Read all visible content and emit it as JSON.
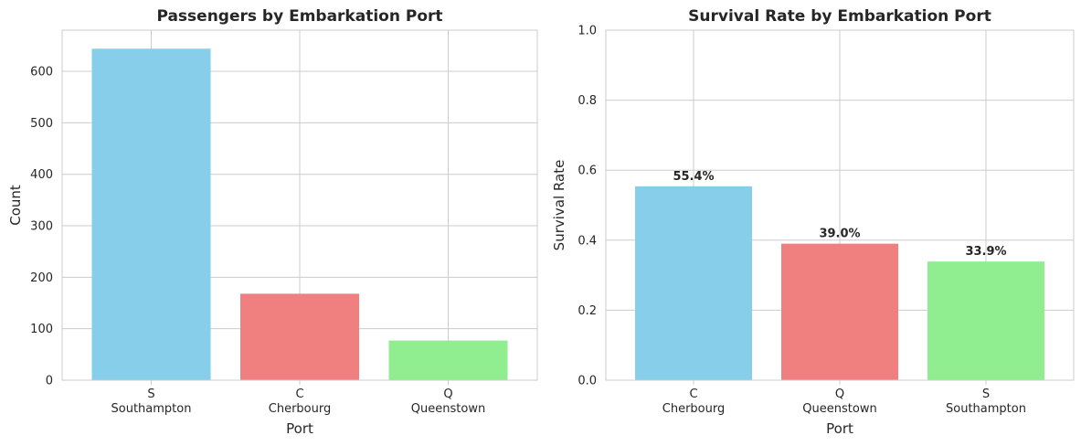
{
  "chart_data": [
    {
      "type": "bar",
      "title": "Passengers by Embarkation Port",
      "xlabel": "Port",
      "ylabel": "Count",
      "categories": [
        "S\nSouthampton",
        "C\nCherbourg",
        "Q\nQueenstown"
      ],
      "values": [
        644,
        168,
        77
      ],
      "colors": [
        "#87CEEB",
        "#F08080",
        "#90EE90"
      ],
      "ylim": [
        0,
        680
      ],
      "yticks": [
        0,
        100,
        200,
        300,
        400,
        500,
        600
      ],
      "ytick_labels": [
        "0",
        "100",
        "200",
        "300",
        "400",
        "500",
        "600"
      ],
      "grid": true,
      "bar_labels": []
    },
    {
      "type": "bar",
      "title": "Survival Rate by Embarkation Port",
      "xlabel": "Port",
      "ylabel": "Survival Rate",
      "categories": [
        "C\nCherbourg",
        "Q\nQueenstown",
        "S\nSouthampton"
      ],
      "values": [
        0.554,
        0.39,
        0.339
      ],
      "colors": [
        "#87CEEB",
        "#F08080",
        "#90EE90"
      ],
      "ylim": [
        0,
        1.0
      ],
      "yticks": [
        0,
        0.2,
        0.4,
        0.6,
        0.8,
        1.0
      ],
      "ytick_labels": [
        "0.0",
        "0.2",
        "0.4",
        "0.6",
        "0.8",
        "1.0"
      ],
      "grid": true,
      "bar_labels": [
        "55.4%",
        "39.0%",
        "33.9%"
      ]
    }
  ]
}
